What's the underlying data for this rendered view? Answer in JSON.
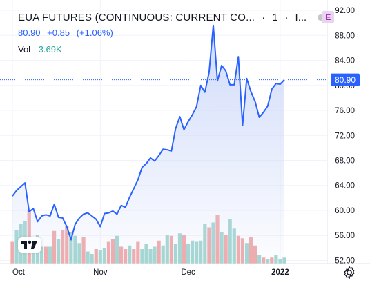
{
  "header": {
    "title": "EUA FUTURES (CONTINUOUS: CURRENT CO...",
    "interval": "1",
    "exchange": "I...",
    "badge": "E",
    "last": "80.90",
    "change": "+0.85",
    "change_pct": "(+1.06%)",
    "vol_label": "Vol",
    "vol_value": "3.69K"
  },
  "icons": {
    "logo": "tradingview-logo-icon",
    "settings": "gear-icon"
  },
  "colors": {
    "line": "#2962ff",
    "area_top": "#cbd7f9",
    "vol_up": "#a3d6d0",
    "vol_down": "#f0a9a9",
    "text": "#131722",
    "badge_price": "#2962ff"
  },
  "chart_data": {
    "type": "line",
    "title": "EUA FUTURES (CONTINUOUS: CURRENT CO...",
    "xlabel": "",
    "ylabel": "",
    "x_ticks": [
      "Oct",
      "Nov",
      "Dec",
      "2022"
    ],
    "y_ticks": [
      "92.00",
      "88.00",
      "84.00",
      "80.00",
      "76.00",
      "72.00",
      "68.00",
      "64.00",
      "60.00",
      "56.00",
      "52.00"
    ],
    "ylim": [
      51.5,
      93
    ],
    "last_price_label": "80.90",
    "grid": true,
    "legend": "none",
    "series": [
      {
        "values": [
          62.3,
          63.2,
          63.8,
          64.4,
          59.8,
          60.3,
          58.2,
          59.1,
          59.3,
          59.1,
          61.0,
          58.9,
          58.8,
          57.4,
          55.3,
          57.8,
          58.8,
          59.4,
          59.6,
          59.1,
          58.6,
          57.4,
          59.5,
          59.6,
          59.9,
          59.4,
          60.8,
          60.5,
          62.1,
          63.5,
          64.9,
          66.9,
          67.5,
          68.4,
          67.9,
          68.8,
          69.8,
          69.7,
          69.5,
          73.1,
          75.0,
          72.9,
          74.2,
          75.3,
          76.6,
          80.0,
          78.9,
          82.1,
          89.6,
          80.7,
          83.2,
          82.3,
          80.1,
          80.1,
          84.6,
          73.6,
          81.1,
          79.0,
          77.4,
          74.9,
          75.7,
          76.7,
          79.4,
          80.3,
          80.2,
          80.9
        ]
      }
    ],
    "volume": {
      "values": [
        18,
        28,
        33,
        35,
        44,
        18,
        24,
        14,
        14,
        14,
        27,
        20,
        28,
        31,
        26,
        23,
        17,
        22,
        10,
        8,
        12,
        11,
        13,
        18,
        20,
        23,
        14,
        12,
        15,
        12,
        18,
        12,
        16,
        12,
        14,
        19,
        15,
        24,
        23,
        16,
        25,
        24,
        16,
        19,
        18,
        19,
        33,
        30,
        34,
        40,
        26,
        24,
        37,
        29,
        23,
        21,
        17,
        22,
        15,
        7,
        5,
        4,
        5,
        7,
        4,
        5
      ],
      "colors": [
        "down",
        "up",
        "up",
        "up",
        "down",
        "up",
        "up",
        "up",
        "down",
        "up",
        "down",
        "up",
        "down",
        "down",
        "up",
        "up",
        "up",
        "down",
        "up",
        "up",
        "down",
        "up",
        "up",
        "down",
        "down",
        "up",
        "down",
        "down",
        "up",
        "down",
        "down",
        "up",
        "up",
        "up",
        "up",
        "down",
        "up",
        "up",
        "down",
        "up",
        "up",
        "down",
        "up",
        "up",
        "up",
        "up",
        "up",
        "down",
        "up",
        "down",
        "up",
        "down",
        "up",
        "up",
        "down",
        "down",
        "up",
        "down",
        "down",
        "up",
        "down",
        "up",
        "down",
        "up",
        "up",
        "up"
      ]
    }
  }
}
